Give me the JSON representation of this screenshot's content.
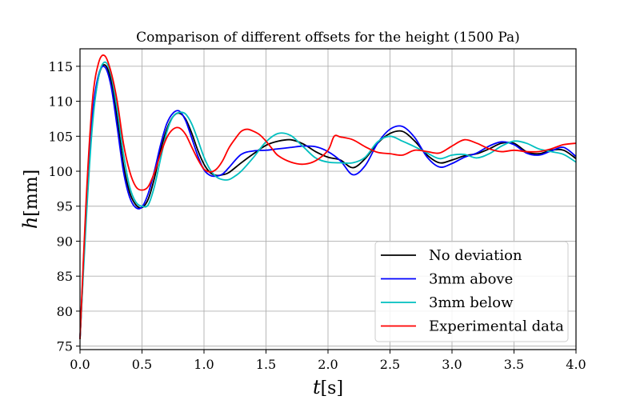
{
  "chart_data": {
    "type": "line",
    "title": "Comparison of different offsets for the height (1500 Pa)",
    "xlabel": {
      "symbol": "t",
      "unit": "[s]"
    },
    "ylabel": {
      "symbol": "h",
      "unit": "[mm]"
    },
    "xlim": [
      0.0,
      4.0
    ],
    "ylim": [
      74.5,
      117.5
    ],
    "xticks": [
      0.0,
      0.5,
      1.0,
      1.5,
      2.0,
      2.5,
      3.0,
      3.5,
      4.0
    ],
    "xtick_labels": [
      "0.0",
      "0.5",
      "1.0",
      "1.5",
      "2.0",
      "2.5",
      "3.0",
      "3.5",
      "4.0"
    ],
    "yticks": [
      75,
      80,
      85,
      90,
      95,
      100,
      105,
      110,
      115
    ],
    "ytick_labels": [
      "75",
      "80",
      "85",
      "90",
      "95",
      "100",
      "105",
      "110",
      "115"
    ],
    "grid": true,
    "legend_position": "bottom-right",
    "series": [
      {
        "name": "No deviation",
        "color": "#000000",
        "x": [
          0,
          0.05,
          0.1,
          0.15,
          0.2,
          0.25,
          0.3,
          0.35,
          0.4,
          0.45,
          0.5,
          0.55,
          0.6,
          0.65,
          0.7,
          0.75,
          0.8,
          0.85,
          0.9,
          0.95,
          1.0,
          1.05,
          1.1,
          1.15,
          1.2,
          1.3,
          1.4,
          1.5,
          1.6,
          1.7,
          1.8,
          1.9,
          2.0,
          2.1,
          2.2,
          2.3,
          2.4,
          2.5,
          2.6,
          2.7,
          2.8,
          2.9,
          3.0,
          3.1,
          3.2,
          3.3,
          3.4,
          3.5,
          3.6,
          3.7,
          3.8,
          3.9,
          4.0
        ],
        "y": [
          76,
          94,
          107,
          113.5,
          115.2,
          113,
          107.5,
          101,
          97,
          95.2,
          94.8,
          96,
          99,
          103,
          106,
          107.8,
          108.3,
          107.5,
          105.5,
          103,
          101,
          99.8,
          99.4,
          99.5,
          99.8,
          101.2,
          102.5,
          103.7,
          104.3,
          104.5,
          103.9,
          102.8,
          102,
          101.6,
          100.5,
          101.8,
          104,
          105.4,
          105.7,
          104.3,
          102.3,
          101.2,
          101.6,
          102.2,
          102.5,
          103.2,
          104,
          104,
          102.8,
          102.5,
          103,
          103,
          101.8
        ]
      },
      {
        "name": "3mm above",
        "color": "#0000ff",
        "x": [
          0,
          0.05,
          0.1,
          0.15,
          0.2,
          0.25,
          0.3,
          0.35,
          0.4,
          0.45,
          0.5,
          0.55,
          0.6,
          0.65,
          0.7,
          0.75,
          0.8,
          0.85,
          0.9,
          0.95,
          1.0,
          1.05,
          1.1,
          1.15,
          1.2,
          1.3,
          1.4,
          1.5,
          1.6,
          1.7,
          1.8,
          1.9,
          2.0,
          2.1,
          2.2,
          2.3,
          2.4,
          2.5,
          2.6,
          2.7,
          2.8,
          2.9,
          3.0,
          3.1,
          3.2,
          3.3,
          3.4,
          3.5,
          3.6,
          3.7,
          3.8,
          3.9,
          4.0
        ],
        "y": [
          76,
          95,
          108,
          113.8,
          114.9,
          112.2,
          106.3,
          100,
          96.3,
          94.8,
          94.9,
          96.8,
          100,
          103.8,
          106.8,
          108.3,
          108.6,
          107.3,
          104.8,
          102.2,
          100.2,
          99.4,
          99.3,
          99.6,
          100.5,
          102.4,
          102.9,
          103,
          103.2,
          103.4,
          103.6,
          103.5,
          102.8,
          101.5,
          99.5,
          100.8,
          104,
          106,
          106.4,
          104.8,
          102,
          100.6,
          101.1,
          102,
          102.6,
          103.6,
          104.2,
          103.8,
          102.6,
          102.3,
          102.9,
          103.4,
          102.1
        ]
      },
      {
        "name": "3mm below",
        "color": "#00bfbf",
        "x": [
          0,
          0.05,
          0.1,
          0.15,
          0.2,
          0.25,
          0.3,
          0.35,
          0.4,
          0.45,
          0.5,
          0.55,
          0.6,
          0.65,
          0.7,
          0.75,
          0.8,
          0.85,
          0.9,
          0.95,
          1.0,
          1.05,
          1.1,
          1.15,
          1.2,
          1.25,
          1.3,
          1.4,
          1.5,
          1.6,
          1.7,
          1.8,
          1.9,
          2.0,
          2.1,
          2.2,
          2.3,
          2.4,
          2.5,
          2.6,
          2.7,
          2.8,
          2.9,
          3.0,
          3.1,
          3.2,
          3.3,
          3.4,
          3.5,
          3.6,
          3.7,
          3.8,
          3.9,
          4.0
        ],
        "y": [
          76,
          93,
          106.5,
          113.5,
          115.6,
          113.8,
          108.8,
          102.5,
          97.8,
          95.6,
          95,
          95.2,
          97.8,
          101.8,
          105.6,
          107.8,
          108.4,
          108.2,
          106.8,
          104.5,
          102,
          100.2,
          99.2,
          98.8,
          98.8,
          99.3,
          100,
          102,
          104.2,
          105.4,
          105.1,
          103.5,
          101.9,
          101.3,
          101.2,
          101.2,
          102,
          104.2,
          105,
          104.3,
          103.5,
          102.6,
          101.8,
          102.3,
          102.4,
          101.9,
          102.5,
          103.6,
          104.3,
          104,
          103.2,
          102.8,
          102.4,
          101.3
        ]
      },
      {
        "name": "Experimental data",
        "color": "#ff0000",
        "x": [
          0,
          0.05,
          0.1,
          0.15,
          0.2,
          0.25,
          0.3,
          0.35,
          0.4,
          0.45,
          0.5,
          0.55,
          0.6,
          0.65,
          0.7,
          0.75,
          0.8,
          0.85,
          0.9,
          0.95,
          1.0,
          1.05,
          1.1,
          1.15,
          1.2,
          1.25,
          1.3,
          1.35,
          1.4,
          1.45,
          1.5,
          1.55,
          1.6,
          1.7,
          1.8,
          1.9,
          2.0,
          2.05,
          2.1,
          2.2,
          2.3,
          2.4,
          2.5,
          2.6,
          2.7,
          2.8,
          2.9,
          3.0,
          3.1,
          3.2,
          3.3,
          3.4,
          3.5,
          3.6,
          3.7,
          3.8,
          3.9,
          4.0
        ],
        "y": [
          76,
          96,
          110,
          115.5,
          116.5,
          114.2,
          110,
          104,
          100,
          97.8,
          97.3,
          97.8,
          99.8,
          102.5,
          104.8,
          106,
          106.2,
          105.3,
          103.5,
          101.7,
          100.3,
          99.9,
          100.3,
          101.5,
          103.3,
          104.6,
          105.7,
          106,
          105.7,
          105.2,
          104.3,
          103.2,
          102.2,
          101.3,
          101,
          101.5,
          103,
          105,
          104.9,
          104.5,
          103.5,
          102.7,
          102.5,
          102.3,
          103,
          102.8,
          102.6,
          103.6,
          104.5,
          104,
          103.2,
          102.8,
          103,
          102.8,
          102.8,
          103.2,
          103.8,
          104
        ]
      }
    ]
  }
}
